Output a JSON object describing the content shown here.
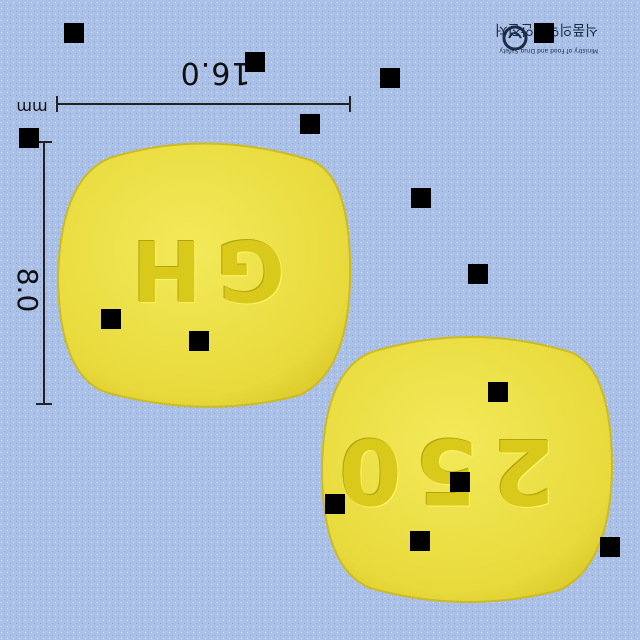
{
  "photo": {
    "description_label": "pill identification photo",
    "background_color": "#aac0e6",
    "pill_color": "#ede24a"
  },
  "measurements": {
    "width_label": "16.0",
    "height_label": "8.0",
    "unit": "mm"
  },
  "pills": [
    {
      "side": "front",
      "imprint": "GH"
    },
    {
      "side": "back",
      "imprint": "250"
    }
  ],
  "watermark": {
    "text": "식품의약품안전처",
    "subtext": "Ministry of Food and Drug Safety"
  }
}
